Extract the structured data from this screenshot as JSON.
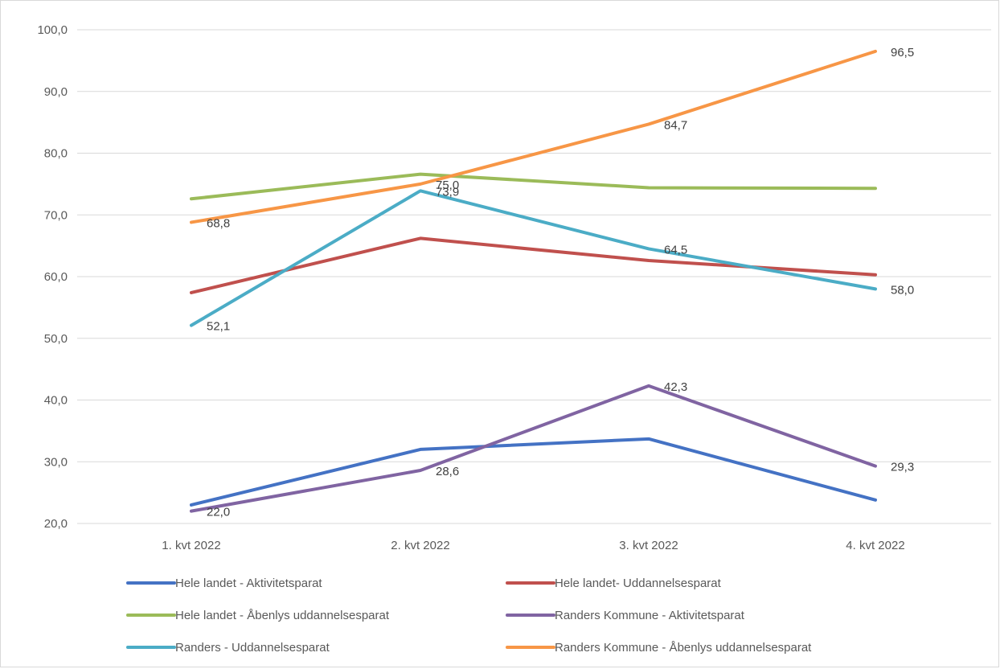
{
  "chart_data": {
    "type": "line",
    "categories": [
      "1. kvt 2022",
      "2. kvt 2022",
      "3. kvt 2022",
      "4. kvt 2022"
    ],
    "ylim": [
      20,
      100
    ],
    "yticks": [
      "20,0",
      "30,0",
      "40,0",
      "50,0",
      "60,0",
      "70,0",
      "80,0",
      "90,0",
      "100,0"
    ],
    "grid": true,
    "legend_position": "bottom",
    "series": [
      {
        "name": "Hele landet - Aktivitetsparat",
        "color": "#4472c4",
        "values": [
          23.0,
          32.0,
          33.7,
          23.8
        ],
        "labels": [
          "",
          "",
          "",
          ""
        ]
      },
      {
        "name": "Hele landet- Uddannelsesparat",
        "color": "#c0504d",
        "values": [
          57.4,
          66.2,
          62.6,
          60.3
        ],
        "labels": [
          "",
          "",
          "",
          ""
        ]
      },
      {
        "name": "Hele landet - Åbenlys uddannelsesparat",
        "color": "#9bbb59",
        "values": [
          72.6,
          76.6,
          74.4,
          74.3
        ],
        "labels": [
          "",
          "",
          "",
          ""
        ]
      },
      {
        "name": "Randers Kommune - Aktivitetsparat",
        "color": "#8064a2",
        "values": [
          22.0,
          28.6,
          42.3,
          29.3
        ],
        "labels": [
          "22,0",
          "28,6",
          "42,3",
          "29,3"
        ]
      },
      {
        "name": "Randers - Uddannelsesparat",
        "color": "#4bacc6",
        "values": [
          52.1,
          73.9,
          64.5,
          58.0
        ],
        "labels": [
          "52,1",
          "73,9",
          "64,5",
          "58,0"
        ]
      },
      {
        "name": "Randers Kommune - Åbenlys uddannelsesparat",
        "color": "#f79646",
        "values": [
          68.8,
          75.0,
          84.7,
          96.5
        ],
        "labels": [
          "68,8",
          "75,0",
          "84,7",
          "96,5"
        ]
      }
    ]
  }
}
